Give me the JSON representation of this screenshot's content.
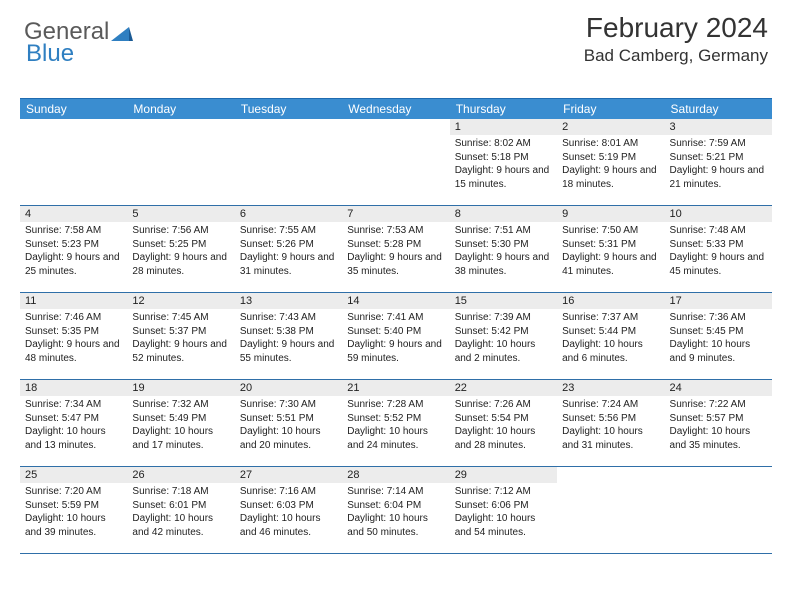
{
  "logo": {
    "text1": "General",
    "text2": "Blue"
  },
  "title": "February 2024",
  "location": "Bad Camberg, Germany",
  "colors": {
    "header_bg": "#3a8dd0",
    "header_border": "#1f6bb0",
    "week_border": "#2f6fa8",
    "daynum_bg": "#ececec",
    "logo_gray": "#5a5a5a",
    "logo_blue": "#2f7fc1"
  },
  "typography": {
    "title_fontsize": 28,
    "location_fontsize": 17,
    "dayheader_fontsize": 12,
    "cell_fontsize": 10
  },
  "day_headers": [
    "Sunday",
    "Monday",
    "Tuesday",
    "Wednesday",
    "Thursday",
    "Friday",
    "Saturday"
  ],
  "weeks": [
    [
      {
        "n": "",
        "lines": []
      },
      {
        "n": "",
        "lines": []
      },
      {
        "n": "",
        "lines": []
      },
      {
        "n": "",
        "lines": []
      },
      {
        "n": "1",
        "lines": [
          "Sunrise: 8:02 AM",
          "Sunset: 5:18 PM",
          "Daylight: 9 hours and 15 minutes."
        ]
      },
      {
        "n": "2",
        "lines": [
          "Sunrise: 8:01 AM",
          "Sunset: 5:19 PM",
          "Daylight: 9 hours and 18 minutes."
        ]
      },
      {
        "n": "3",
        "lines": [
          "Sunrise: 7:59 AM",
          "Sunset: 5:21 PM",
          "Daylight: 9 hours and 21 minutes."
        ]
      }
    ],
    [
      {
        "n": "4",
        "lines": [
          "Sunrise: 7:58 AM",
          "Sunset: 5:23 PM",
          "Daylight: 9 hours and 25 minutes."
        ]
      },
      {
        "n": "5",
        "lines": [
          "Sunrise: 7:56 AM",
          "Sunset: 5:25 PM",
          "Daylight: 9 hours and 28 minutes."
        ]
      },
      {
        "n": "6",
        "lines": [
          "Sunrise: 7:55 AM",
          "Sunset: 5:26 PM",
          "Daylight: 9 hours and 31 minutes."
        ]
      },
      {
        "n": "7",
        "lines": [
          "Sunrise: 7:53 AM",
          "Sunset: 5:28 PM",
          "Daylight: 9 hours and 35 minutes."
        ]
      },
      {
        "n": "8",
        "lines": [
          "Sunrise: 7:51 AM",
          "Sunset: 5:30 PM",
          "Daylight: 9 hours and 38 minutes."
        ]
      },
      {
        "n": "9",
        "lines": [
          "Sunrise: 7:50 AM",
          "Sunset: 5:31 PM",
          "Daylight: 9 hours and 41 minutes."
        ]
      },
      {
        "n": "10",
        "lines": [
          "Sunrise: 7:48 AM",
          "Sunset: 5:33 PM",
          "Daylight: 9 hours and 45 minutes."
        ]
      }
    ],
    [
      {
        "n": "11",
        "lines": [
          "Sunrise: 7:46 AM",
          "Sunset: 5:35 PM",
          "Daylight: 9 hours and 48 minutes."
        ]
      },
      {
        "n": "12",
        "lines": [
          "Sunrise: 7:45 AM",
          "Sunset: 5:37 PM",
          "Daylight: 9 hours and 52 minutes."
        ]
      },
      {
        "n": "13",
        "lines": [
          "Sunrise: 7:43 AM",
          "Sunset: 5:38 PM",
          "Daylight: 9 hours and 55 minutes."
        ]
      },
      {
        "n": "14",
        "lines": [
          "Sunrise: 7:41 AM",
          "Sunset: 5:40 PM",
          "Daylight: 9 hours and 59 minutes."
        ]
      },
      {
        "n": "15",
        "lines": [
          "Sunrise: 7:39 AM",
          "Sunset: 5:42 PM",
          "Daylight: 10 hours and 2 minutes."
        ]
      },
      {
        "n": "16",
        "lines": [
          "Sunrise: 7:37 AM",
          "Sunset: 5:44 PM",
          "Daylight: 10 hours and 6 minutes."
        ]
      },
      {
        "n": "17",
        "lines": [
          "Sunrise: 7:36 AM",
          "Sunset: 5:45 PM",
          "Daylight: 10 hours and 9 minutes."
        ]
      }
    ],
    [
      {
        "n": "18",
        "lines": [
          "Sunrise: 7:34 AM",
          "Sunset: 5:47 PM",
          "Daylight: 10 hours and 13 minutes."
        ]
      },
      {
        "n": "19",
        "lines": [
          "Sunrise: 7:32 AM",
          "Sunset: 5:49 PM",
          "Daylight: 10 hours and 17 minutes."
        ]
      },
      {
        "n": "20",
        "lines": [
          "Sunrise: 7:30 AM",
          "Sunset: 5:51 PM",
          "Daylight: 10 hours and 20 minutes."
        ]
      },
      {
        "n": "21",
        "lines": [
          "Sunrise: 7:28 AM",
          "Sunset: 5:52 PM",
          "Daylight: 10 hours and 24 minutes."
        ]
      },
      {
        "n": "22",
        "lines": [
          "Sunrise: 7:26 AM",
          "Sunset: 5:54 PM",
          "Daylight: 10 hours and 28 minutes."
        ]
      },
      {
        "n": "23",
        "lines": [
          "Sunrise: 7:24 AM",
          "Sunset: 5:56 PM",
          "Daylight: 10 hours and 31 minutes."
        ]
      },
      {
        "n": "24",
        "lines": [
          "Sunrise: 7:22 AM",
          "Sunset: 5:57 PM",
          "Daylight: 10 hours and 35 minutes."
        ]
      }
    ],
    [
      {
        "n": "25",
        "lines": [
          "Sunrise: 7:20 AM",
          "Sunset: 5:59 PM",
          "Daylight: 10 hours and 39 minutes."
        ]
      },
      {
        "n": "26",
        "lines": [
          "Sunrise: 7:18 AM",
          "Sunset: 6:01 PM",
          "Daylight: 10 hours and 42 minutes."
        ]
      },
      {
        "n": "27",
        "lines": [
          "Sunrise: 7:16 AM",
          "Sunset: 6:03 PM",
          "Daylight: 10 hours and 46 minutes."
        ]
      },
      {
        "n": "28",
        "lines": [
          "Sunrise: 7:14 AM",
          "Sunset: 6:04 PM",
          "Daylight: 10 hours and 50 minutes."
        ]
      },
      {
        "n": "29",
        "lines": [
          "Sunrise: 7:12 AM",
          "Sunset: 6:06 PM",
          "Daylight: 10 hours and 54 minutes."
        ]
      },
      {
        "n": "",
        "lines": []
      },
      {
        "n": "",
        "lines": []
      }
    ]
  ]
}
